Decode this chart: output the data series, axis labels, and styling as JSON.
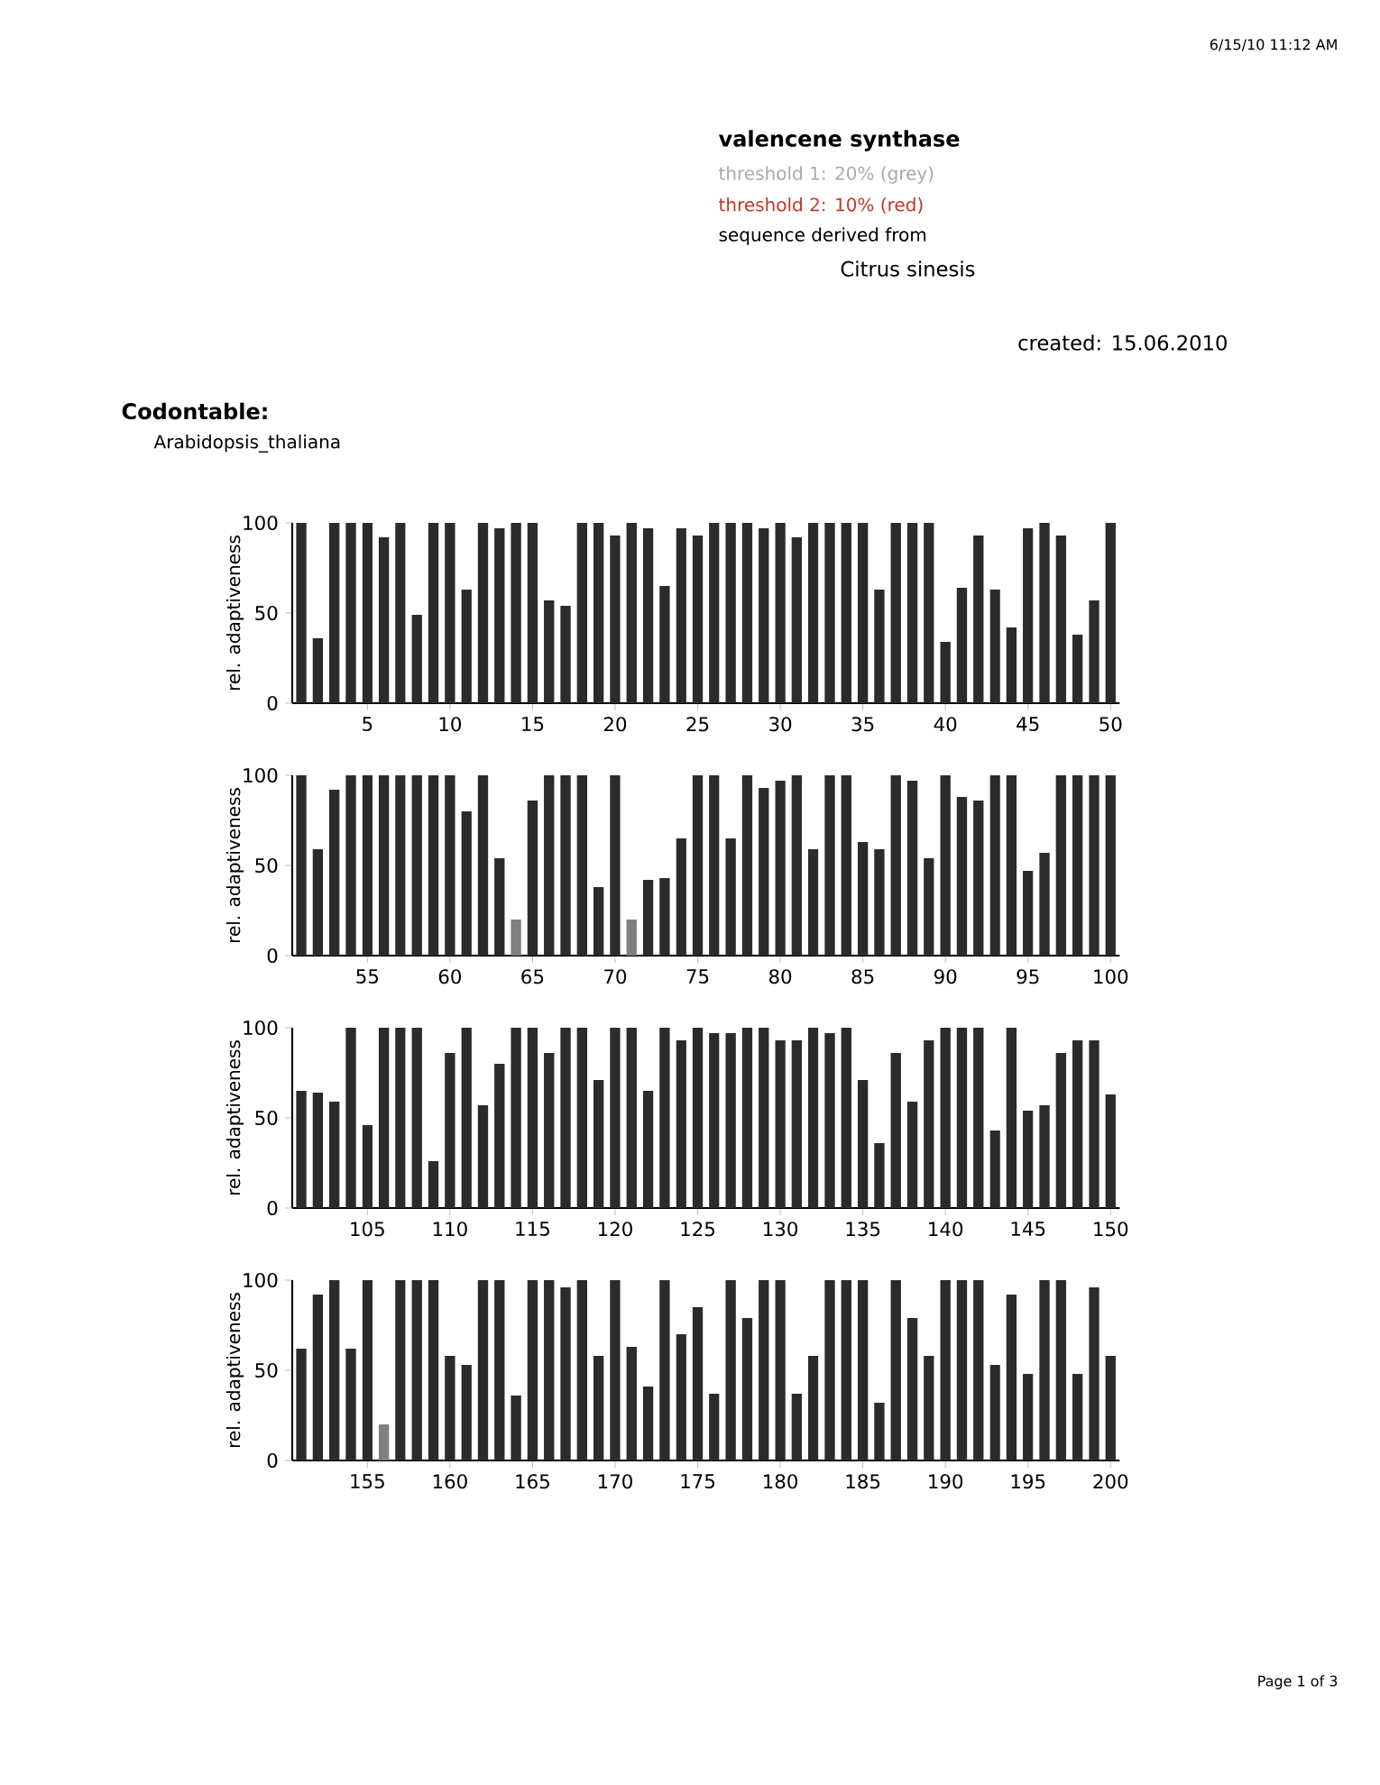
{
  "chart_data": [
    {
      "type": "bar",
      "title": "valencene synthase",
      "annotations": [
        "threshold 1: 20% (grey)",
        "threshold 2: 10% (red)",
        "sequence derived from",
        "Citrus sinesis",
        "created: 15.06.2010",
        "Codontable:",
        "Arabidopsis_thaliana",
        "6/15/10 11:12 AM",
        "Page 1 of 3"
      ],
      "ylabel": "rel. adaptiveness",
      "categories": [
        null,
        null,
        null,
        null,
        "5",
        null,
        null,
        null,
        null,
        "10",
        null,
        null,
        null,
        null,
        "15",
        null,
        null,
        null,
        null,
        "20",
        null,
        null,
        null,
        null,
        "25",
        null,
        null,
        null,
        null,
        "30",
        null,
        null,
        null,
        null,
        "35",
        null,
        null,
        null,
        null,
        "40",
        null,
        null,
        null,
        null,
        "45",
        null,
        null,
        null,
        null,
        "50"
      ],
      "values": [
        100,
        36,
        100,
        100,
        100,
        92,
        100,
        49,
        100,
        100,
        63,
        100,
        97,
        100,
        100,
        57,
        54,
        100,
        100,
        93,
        100,
        97,
        65,
        97,
        93,
        100,
        100,
        100,
        97,
        100,
        92,
        100,
        100,
        100,
        100,
        63,
        100,
        100,
        100,
        34,
        64,
        93,
        63,
        42,
        97,
        100,
        93,
        38,
        57,
        100
      ],
      "colors": [
        "#2b2b2b",
        "#2b2b2b",
        "#2b2b2b",
        "#2b2b2b",
        "#2b2b2b",
        "#2b2b2b",
        "#2b2b2b",
        "#2b2b2b",
        "#2b2b2b",
        "#2b2b2b",
        "#2b2b2b",
        "#2b2b2b",
        "#2b2b2b",
        "#2b2b2b",
        "#2b2b2b",
        "#2b2b2b",
        "#2b2b2b",
        "#2b2b2b",
        "#2b2b2b",
        "#2b2b2b",
        "#2b2b2b",
        "#2b2b2b",
        "#2b2b2b",
        "#2b2b2b",
        "#2b2b2b",
        "#2b2b2b",
        "#2b2b2b",
        "#2b2b2b",
        "#2b2b2b",
        "#2b2b2b",
        "#2b2b2b",
        "#2b2b2b",
        "#2b2b2b",
        "#2b2b2b",
        "#2b2b2b",
        "#2b2b2b",
        "#2b2b2b",
        "#2b2b2b",
        "#2b2b2b",
        "#2b2b2b",
        "#2b2b2b",
        "#2b2b2b",
        "#2b2b2b",
        "#2b2b2b",
        "#2b2b2b",
        "#2b2b2b",
        "#2b2b2b",
        "#2b2b2b",
        "#2b2b2b",
        "#2b2b2b"
      ],
      "ylim": [
        0,
        100
      ],
      "yticks": [
        0,
        50,
        100
      ]
    },
    {
      "type": "bar",
      "ylabel": "rel. adaptiveness",
      "categories": [
        null,
        null,
        null,
        null,
        "55",
        null,
        null,
        null,
        null,
        "60",
        null,
        null,
        null,
        null,
        "65",
        null,
        null,
        null,
        null,
        "70",
        null,
        null,
        null,
        null,
        "75",
        null,
        null,
        null,
        null,
        "80",
        null,
        null,
        null,
        null,
        "85",
        null,
        null,
        null,
        null,
        "90",
        null,
        null,
        null,
        null,
        "95",
        null,
        null,
        null,
        null,
        "100"
      ],
      "values": [
        100,
        59,
        92,
        100,
        100,
        100,
        100,
        100,
        100,
        100,
        80,
        100,
        54,
        20,
        86,
        100,
        100,
        100,
        38,
        100,
        20,
        42,
        43,
        65,
        100,
        100,
        65,
        100,
        93,
        97,
        100,
        59,
        100,
        100,
        63,
        59,
        100,
        97,
        54,
        100,
        88,
        86,
        100,
        100,
        47,
        57,
        100,
        100,
        100,
        100
      ],
      "colors": [
        "#2b2b2b",
        "#2b2b2b",
        "#2b2b2b",
        "#2b2b2b",
        "#2b2b2b",
        "#2b2b2b",
        "#2b2b2b",
        "#2b2b2b",
        "#2b2b2b",
        "#2b2b2b",
        "#2b2b2b",
        "#2b2b2b",
        "#2b2b2b",
        "#808080",
        "#2b2b2b",
        "#2b2b2b",
        "#2b2b2b",
        "#2b2b2b",
        "#2b2b2b",
        "#2b2b2b",
        "#808080",
        "#2b2b2b",
        "#2b2b2b",
        "#2b2b2b",
        "#2b2b2b",
        "#2b2b2b",
        "#2b2b2b",
        "#2b2b2b",
        "#2b2b2b",
        "#2b2b2b",
        "#2b2b2b",
        "#2b2b2b",
        "#2b2b2b",
        "#2b2b2b",
        "#2b2b2b",
        "#2b2b2b",
        "#2b2b2b",
        "#2b2b2b",
        "#2b2b2b",
        "#2b2b2b",
        "#2b2b2b",
        "#2b2b2b",
        "#2b2b2b",
        "#2b2b2b",
        "#2b2b2b",
        "#2b2b2b",
        "#2b2b2b",
        "#2b2b2b",
        "#2b2b2b",
        "#2b2b2b"
      ],
      "ylim": [
        0,
        100
      ],
      "yticks": [
        0,
        50,
        100
      ]
    },
    {
      "type": "bar",
      "ylabel": "rel. adaptiveness",
      "categories": [
        null,
        null,
        null,
        null,
        "105",
        null,
        null,
        null,
        null,
        "110",
        null,
        null,
        null,
        null,
        "115",
        null,
        null,
        null,
        null,
        "120",
        null,
        null,
        null,
        null,
        "125",
        null,
        null,
        null,
        null,
        "130",
        null,
        null,
        null,
        null,
        "135",
        null,
        null,
        null,
        null,
        "140",
        null,
        null,
        null,
        null,
        "145",
        null,
        null,
        null,
        null,
        "150"
      ],
      "values": [
        65,
        64,
        59,
        100,
        46,
        100,
        100,
        100,
        26,
        86,
        100,
        57,
        80,
        100,
        100,
        86,
        100,
        100,
        71,
        100,
        100,
        65,
        100,
        93,
        100,
        97,
        97,
        100,
        100,
        93,
        93,
        100,
        97,
        100,
        71,
        36,
        86,
        59,
        93,
        100,
        100,
        100,
        43,
        100,
        54,
        57,
        86,
        93,
        93,
        63
      ],
      "colors": [
        "#2b2b2b",
        "#2b2b2b",
        "#2b2b2b",
        "#2b2b2b",
        "#2b2b2b",
        "#2b2b2b",
        "#2b2b2b",
        "#2b2b2b",
        "#2b2b2b",
        "#2b2b2b",
        "#2b2b2b",
        "#2b2b2b",
        "#2b2b2b",
        "#2b2b2b",
        "#2b2b2b",
        "#2b2b2b",
        "#2b2b2b",
        "#2b2b2b",
        "#2b2b2b",
        "#2b2b2b",
        "#2b2b2b",
        "#2b2b2b",
        "#2b2b2b",
        "#2b2b2b",
        "#2b2b2b",
        "#2b2b2b",
        "#2b2b2b",
        "#2b2b2b",
        "#2b2b2b",
        "#2b2b2b",
        "#2b2b2b",
        "#2b2b2b",
        "#2b2b2b",
        "#2b2b2b",
        "#2b2b2b",
        "#2b2b2b",
        "#2b2b2b",
        "#2b2b2b",
        "#2b2b2b",
        "#2b2b2b",
        "#2b2b2b",
        "#2b2b2b",
        "#2b2b2b",
        "#2b2b2b",
        "#2b2b2b",
        "#2b2b2b",
        "#2b2b2b",
        "#2b2b2b",
        "#2b2b2b",
        "#2b2b2b"
      ],
      "ylim": [
        0,
        100
      ],
      "yticks": [
        0,
        50,
        100
      ]
    },
    {
      "type": "bar",
      "ylabel": "rel. adaptiveness",
      "categories": [
        null,
        null,
        null,
        null,
        "155",
        null,
        null,
        null,
        null,
        "160",
        null,
        null,
        null,
        null,
        "165",
        null,
        null,
        null,
        null,
        "170",
        null,
        null,
        null,
        null,
        "175",
        null,
        null,
        null,
        null,
        "180",
        null,
        null,
        null,
        null,
        "185",
        null,
        null,
        null,
        null,
        "190",
        null,
        null,
        null,
        null,
        "195",
        null,
        null,
        null,
        null,
        "200"
      ],
      "values": [
        62,
        92,
        100,
        62,
        100,
        20,
        100,
        100,
        100,
        58,
        53,
        100,
        100,
        36,
        100,
        100,
        96,
        100,
        58,
        100,
        63,
        41,
        100,
        70,
        85,
        37,
        100,
        79,
        100,
        100,
        37,
        58,
        100,
        100,
        100,
        32,
        100,
        79,
        58,
        100,
        100,
        100,
        53,
        92,
        48,
        100,
        100,
        48,
        96,
        58
      ],
      "colors": [
        "#2b2b2b",
        "#2b2b2b",
        "#2b2b2b",
        "#2b2b2b",
        "#2b2b2b",
        "#808080",
        "#2b2b2b",
        "#2b2b2b",
        "#2b2b2b",
        "#2b2b2b",
        "#2b2b2b",
        "#2b2b2b",
        "#2b2b2b",
        "#2b2b2b",
        "#2b2b2b",
        "#2b2b2b",
        "#2b2b2b",
        "#2b2b2b",
        "#2b2b2b",
        "#2b2b2b",
        "#2b2b2b",
        "#2b2b2b",
        "#2b2b2b",
        "#2b2b2b",
        "#2b2b2b",
        "#2b2b2b",
        "#2b2b2b",
        "#2b2b2b",
        "#2b2b2b",
        "#2b2b2b",
        "#2b2b2b",
        "#2b2b2b",
        "#2b2b2b",
        "#2b2b2b",
        "#2b2b2b",
        "#2b2b2b",
        "#2b2b2b",
        "#2b2b2b",
        "#2b2b2b",
        "#2b2b2b",
        "#2b2b2b",
        "#2b2b2b",
        "#2b2b2b",
        "#2b2b2b",
        "#2b2b2b",
        "#2b2b2b",
        "#2b2b2b",
        "#2b2b2b",
        "#2b2b2b",
        "#2b2b2b"
      ],
      "ylim": [
        0,
        100
      ],
      "yticks": [
        0,
        50,
        100
      ]
    }
  ]
}
